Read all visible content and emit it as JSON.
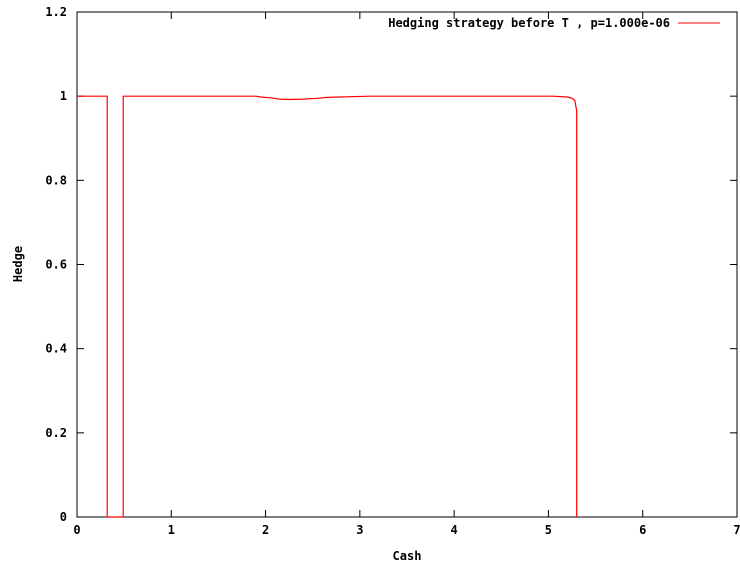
{
  "chart_data": {
    "type": "line",
    "title": "",
    "xlabel": "Cash",
    "ylabel": "Hedge",
    "xlim": [
      0,
      7
    ],
    "ylim": [
      0,
      1.2
    ],
    "xticks": [
      "0",
      "1",
      "2",
      "3",
      "4",
      "5",
      "6",
      "7"
    ],
    "yticks": [
      "0",
      "0.2",
      "0.4",
      "0.6",
      "0.8",
      "1",
      "1.2"
    ],
    "grid": false,
    "legend_position": "top-right",
    "series": [
      {
        "name": "Hedging strategy before T   , p=1.000e-06",
        "color": "#ff0000",
        "step": true,
        "points": [
          [
            0,
            1.0
          ],
          [
            0.32,
            1.0
          ],
          [
            0.32,
            0.0
          ],
          [
            0.49,
            0.0
          ],
          [
            0.49,
            1.0
          ],
          [
            1.9,
            1.0
          ],
          [
            1.95,
            0.998
          ],
          [
            2.05,
            0.996
          ],
          [
            2.15,
            0.993
          ],
          [
            2.25,
            0.992
          ],
          [
            2.4,
            0.993
          ],
          [
            2.55,
            0.995
          ],
          [
            2.65,
            0.997
          ],
          [
            3.1,
            1.0
          ],
          [
            5.05,
            1.0
          ],
          [
            5.2,
            0.998
          ],
          [
            5.25,
            0.995
          ],
          [
            5.28,
            0.99
          ],
          [
            5.3,
            0.965
          ],
          [
            5.3,
            0.0
          ]
        ]
      }
    ]
  }
}
